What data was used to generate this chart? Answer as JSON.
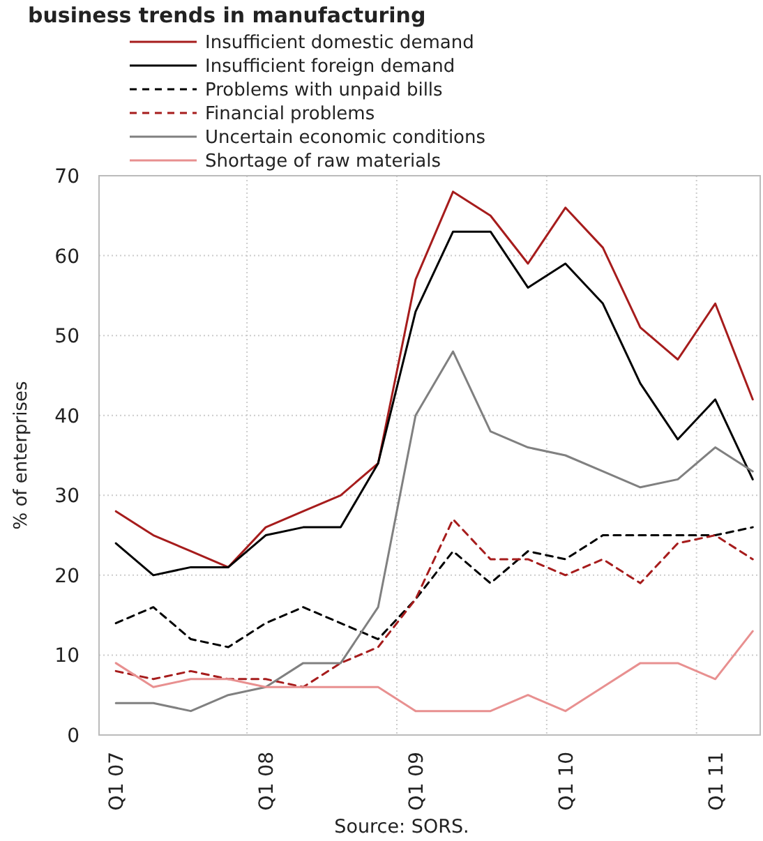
{
  "chart_data": {
    "type": "line",
    "title": "business trends in manufacturing",
    "ylabel": "% of enterprises",
    "annotations": [
      "Source: SORS."
    ],
    "categories": [
      "Q1 07",
      null,
      null,
      null,
      "Q1 08",
      null,
      null,
      null,
      "Q1 09",
      null,
      null,
      null,
      "Q1 10",
      null,
      null,
      null,
      "Q1 11",
      null
    ],
    "ylim": [
      0,
      70
    ],
    "yticks": [
      0,
      10,
      20,
      30,
      40,
      50,
      60,
      70
    ],
    "grid": true,
    "legend": "top",
    "marker": "none",
    "series": [
      {
        "name": "Insufficient domestic demand",
        "color": "#a61c1c",
        "line_style": "solid",
        "values": [
          28,
          25,
          23,
          21,
          26,
          28,
          30,
          34,
          57,
          68,
          65,
          59,
          66,
          61,
          51,
          47,
          54,
          42
        ]
      },
      {
        "name": "Insufficient foreign demand",
        "color": "#000000",
        "line_style": "solid",
        "values": [
          24,
          20,
          21,
          21,
          25,
          26,
          26,
          34,
          53,
          63,
          63,
          56,
          59,
          54,
          44,
          37,
          42,
          32
        ]
      },
      {
        "name": "Problems with unpaid bills",
        "color": "#000000",
        "line_style": "dashed",
        "values": [
          14,
          16,
          12,
          11,
          14,
          16,
          14,
          12,
          17,
          23,
          19,
          23,
          22,
          25,
          25,
          25,
          25,
          26
        ]
      },
      {
        "name": "Financial problems",
        "color": "#a61c1c",
        "line_style": "dashed",
        "values": [
          8,
          7,
          8,
          7,
          7,
          6,
          9,
          11,
          17,
          27,
          22,
          22,
          20,
          22,
          19,
          24,
          25,
          22
        ]
      },
      {
        "name": "Uncertain economic conditions",
        "color": "#808080",
        "line_style": "solid",
        "values": [
          4,
          4,
          3,
          5,
          6,
          9,
          9,
          16,
          40,
          48,
          38,
          36,
          35,
          33,
          31,
          32,
          36,
          33
        ]
      },
      {
        "name": "Shortage of raw materials",
        "color": "#e89090",
        "line_style": "solid",
        "values": [
          9,
          6,
          7,
          7,
          6,
          6,
          6,
          6,
          3,
          3,
          3,
          5,
          3,
          6,
          9,
          9,
          7,
          13
        ]
      }
    ]
  }
}
